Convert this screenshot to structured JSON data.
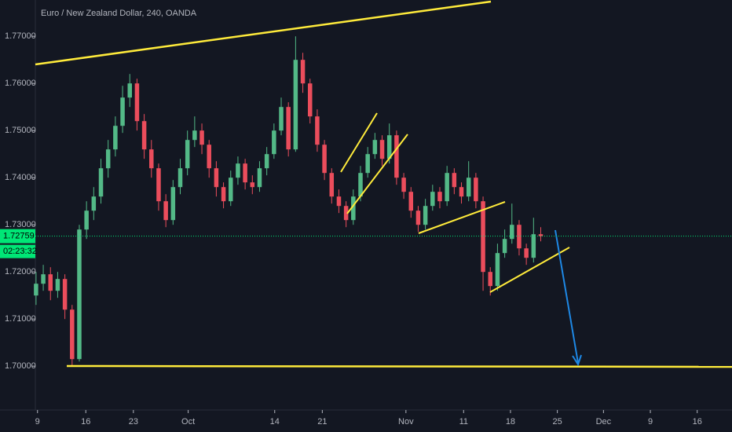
{
  "chart_data": {
    "type": "candlestick",
    "title": "Euro / New Zealand Dollar, 240, OANDA",
    "x": [
      5,
      6,
      7,
      8,
      9,
      10,
      11,
      12,
      13,
      14,
      15,
      16,
      17,
      18,
      19,
      20,
      21,
      22,
      23,
      24,
      25,
      26,
      27,
      28,
      29,
      30,
      31,
      32,
      33,
      34,
      35,
      36,
      37,
      38,
      39,
      40,
      41,
      42,
      43,
      44,
      45,
      46,
      47,
      48,
      49,
      50,
      51,
      52,
      53,
      54,
      55,
      56,
      57,
      58,
      59,
      60,
      61,
      62,
      63,
      64,
      65,
      66,
      67,
      68,
      69,
      70,
      71,
      72,
      73,
      74,
      75
    ],
    "open": [
      1.715,
      1.7175,
      1.7195,
      1.716,
      1.7185,
      1.712,
      1.7015,
      1.729,
      1.733,
      1.736,
      1.742,
      1.746,
      1.751,
      1.757,
      1.76,
      1.752,
      1.746,
      1.742,
      1.735,
      1.731,
      1.738,
      1.742,
      1.748,
      1.75,
      1.747,
      1.742,
      1.738,
      1.735,
      1.74,
      1.743,
      1.739,
      1.738,
      1.742,
      1.745,
      1.75,
      1.755,
      1.746,
      1.765,
      1.76,
      1.753,
      1.747,
      1.741,
      1.736,
      1.734,
      1.731,
      1.736,
      1.741,
      1.745,
      1.748,
      1.744,
      1.749,
      1.74,
      1.737,
      1.733,
      1.73,
      1.734,
      1.737,
      1.735,
      1.741,
      1.738,
      1.736,
      1.74,
      1.735,
      1.72,
      1.717,
      1.724,
      1.727,
      1.73,
      1.725,
      1.723,
      1.728
    ],
    "high": [
      1.72,
      1.7215,
      1.721,
      1.72,
      1.7195,
      1.713,
      1.73,
      1.735,
      1.738,
      1.744,
      1.748,
      1.753,
      1.7595,
      1.762,
      1.761,
      1.7535,
      1.748,
      1.743,
      1.7365,
      1.7395,
      1.744,
      1.75,
      1.753,
      1.7515,
      1.748,
      1.7435,
      1.739,
      1.7415,
      1.7445,
      1.744,
      1.7405,
      1.7435,
      1.7465,
      1.7515,
      1.757,
      1.756,
      1.77,
      1.7665,
      1.761,
      1.7545,
      1.748,
      1.742,
      1.7375,
      1.735,
      1.7375,
      1.7425,
      1.7465,
      1.7495,
      1.749,
      1.7515,
      1.75,
      1.741,
      1.738,
      1.734,
      1.7355,
      1.7385,
      1.738,
      1.7425,
      1.742,
      1.739,
      1.7435,
      1.741,
      1.736,
      1.721,
      1.726,
      1.729,
      1.7345,
      1.731,
      1.726,
      1.7315,
      1.7295
    ],
    "low": [
      1.713,
      1.716,
      1.714,
      1.7145,
      1.71,
      1.7,
      1.701,
      1.727,
      1.731,
      1.7345,
      1.74,
      1.7445,
      1.7495,
      1.755,
      1.75,
      1.744,
      1.74,
      1.733,
      1.7295,
      1.73,
      1.7365,
      1.7405,
      1.7465,
      1.745,
      1.74,
      1.736,
      1.7335,
      1.734,
      1.7385,
      1.7375,
      1.7365,
      1.737,
      1.7405,
      1.744,
      1.749,
      1.7445,
      1.7455,
      1.758,
      1.7515,
      1.7455,
      1.7395,
      1.7345,
      1.7325,
      1.7295,
      1.73,
      1.735,
      1.74,
      1.744,
      1.7425,
      1.743,
      1.7385,
      1.7355,
      1.7315,
      1.7285,
      1.729,
      1.733,
      1.7335,
      1.734,
      1.7365,
      1.7345,
      1.735,
      1.7335,
      1.716,
      1.715,
      1.716,
      1.723,
      1.726,
      1.7235,
      1.7215,
      1.722,
      1.7265
    ],
    "close": [
      1.7175,
      1.7195,
      1.716,
      1.7185,
      1.712,
      1.7015,
      1.729,
      1.733,
      1.736,
      1.742,
      1.746,
      1.751,
      1.757,
      1.76,
      1.752,
      1.746,
      1.742,
      1.735,
      1.731,
      1.738,
      1.742,
      1.748,
      1.75,
      1.747,
      1.742,
      1.738,
      1.735,
      1.74,
      1.743,
      1.739,
      1.738,
      1.742,
      1.745,
      1.75,
      1.755,
      1.746,
      1.765,
      1.76,
      1.753,
      1.747,
      1.741,
      1.736,
      1.734,
      1.731,
      1.736,
      1.741,
      1.745,
      1.748,
      1.744,
      1.749,
      1.74,
      1.737,
      1.733,
      1.73,
      1.734,
      1.737,
      1.735,
      1.741,
      1.738,
      1.736,
      1.74,
      1.735,
      1.72,
      1.717,
      1.724,
      1.727,
      1.73,
      1.725,
      1.723,
      1.728,
      1.7276
    ],
    "up_color": "#53b987",
    "down_color": "#eb4d5c",
    "xlim": [
      0,
      100
    ],
    "xticks": [
      {
        "value": 5.2,
        "label": "9"
      },
      {
        "value": 11.9,
        "label": "16"
      },
      {
        "value": 18.5,
        "label": "23"
      },
      {
        "value": 26.1,
        "label": "Oct"
      },
      {
        "value": 38.1,
        "label": "14"
      },
      {
        "value": 44.7,
        "label": "21"
      },
      {
        "value": 56.3,
        "label": "Nov"
      },
      {
        "value": 64.3,
        "label": "11"
      },
      {
        "value": 70.8,
        "label": "18"
      },
      {
        "value": 77.3,
        "label": "25"
      },
      {
        "value": 83.7,
        "label": "Dec"
      },
      {
        "value": 90.2,
        "label": "9"
      },
      {
        "value": 96.7,
        "label": "16"
      }
    ],
    "ylim": [
      1.6907,
      1.7777
    ],
    "yticks": [
      {
        "value": 1.7,
        "label": "1.70000"
      },
      {
        "value": 1.71,
        "label": "1.71000"
      },
      {
        "value": 1.72,
        "label": "1.72000"
      },
      {
        "value": 1.73,
        "label": "1.73000"
      },
      {
        "value": 1.74,
        "label": "1.74000"
      },
      {
        "value": 1.75,
        "label": "1.75000"
      },
      {
        "value": 1.76,
        "label": "1.76000"
      },
      {
        "value": 1.77,
        "label": "1.77000"
      }
    ],
    "last_price": 1.72759,
    "countdown": "02:23:32",
    "last_price_color": "#00e676"
  }
}
